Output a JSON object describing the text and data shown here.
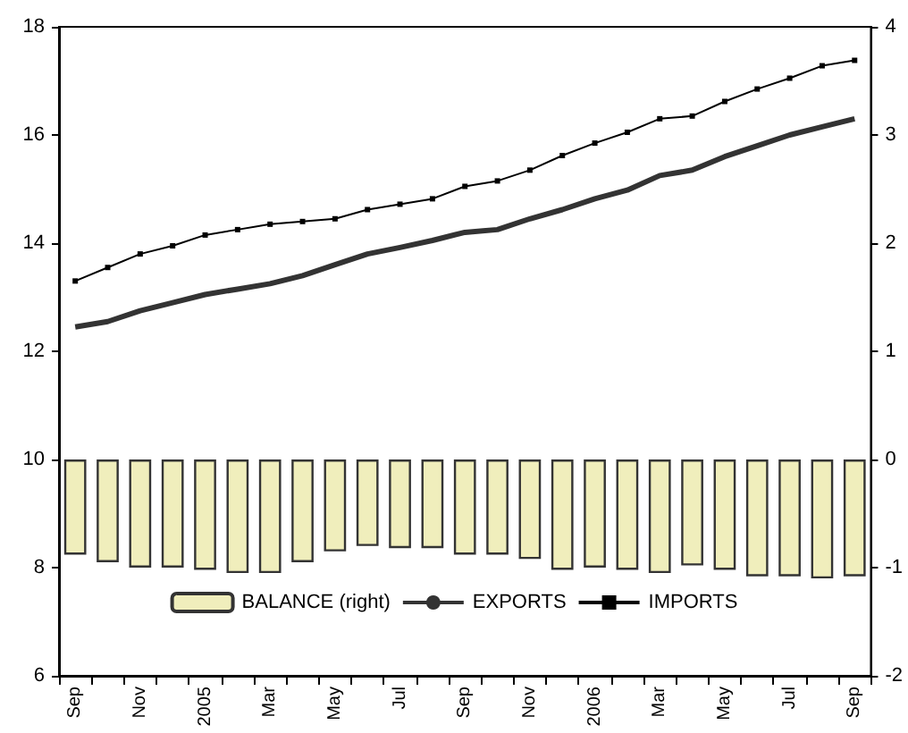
{
  "chart_data": {
    "type": "line",
    "categories": [
      "Sep",
      null,
      "Nov",
      null,
      "2005",
      null,
      "Mar",
      null,
      "May",
      null,
      "Jul",
      null,
      "Sep",
      null,
      "Nov",
      null,
      "2006",
      null,
      "Mar",
      null,
      "May",
      null,
      "Jul",
      null,
      "Sep"
    ],
    "series": [
      {
        "name": "BALANCE (right)",
        "type": "bar",
        "axis": "y2",
        "color": "#f0eebc",
        "values": [
          -0.88,
          -0.95,
          -1.0,
          -1.0,
          -1.02,
          -1.05,
          -1.05,
          -0.95,
          -0.85,
          -0.8,
          -0.82,
          -0.82,
          -0.88,
          -0.88,
          -0.92,
          -1.02,
          -1.0,
          -1.02,
          -1.05,
          -0.98,
          -1.02,
          -1.08,
          -1.08,
          -1.1,
          -1.08
        ]
      },
      {
        "name": "EXPORTS",
        "color": "#333333",
        "marker": "none",
        "values": [
          12.45,
          12.55,
          12.75,
          12.9,
          13.05,
          13.15,
          13.25,
          13.4,
          13.6,
          13.8,
          13.92,
          14.05,
          14.2,
          14.25,
          14.45,
          14.62,
          14.82,
          14.98,
          15.25,
          15.35,
          15.6,
          15.8,
          16.0,
          16.15,
          16.3
        ]
      },
      {
        "name": "IMPORTS",
        "color": "#000000",
        "marker": "square",
        "values": [
          13.3,
          13.55,
          13.8,
          13.95,
          14.15,
          14.25,
          14.35,
          14.4,
          14.45,
          14.62,
          14.72,
          14.82,
          15.05,
          15.15,
          15.35,
          15.62,
          15.85,
          16.05,
          16.3,
          16.35,
          16.62,
          16.85,
          17.05,
          17.28,
          17.38
        ]
      }
    ],
    "ylim": [
      6,
      18
    ],
    "yticks": [
      6,
      8,
      10,
      12,
      14,
      16,
      18
    ],
    "y2lim": [
      -2,
      4
    ],
    "y2ticks": [
      -2,
      -1,
      0,
      1,
      2,
      3,
      4
    ],
    "grid": false,
    "legend": "bottom"
  }
}
